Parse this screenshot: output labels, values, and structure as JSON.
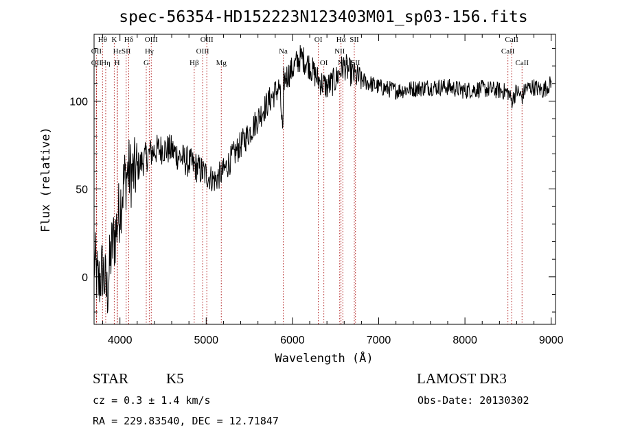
{
  "chart_data": {
    "type": "line",
    "title": "spec-56354-HD152223N123403M01_sp03-156.fits",
    "xlabel": "Wavelength (Å)",
    "ylabel": "Flux (relative)",
    "xlim": [
      3700,
      9050
    ],
    "ylim": [
      -27,
      138
    ],
    "x_ticks": [
      4000,
      5000,
      6000,
      7000,
      8000,
      9000
    ],
    "y_ticks": [
      0,
      50,
      100
    ],
    "series": [
      {
        "name": "flux",
        "x": [
          3700,
          3750,
          3800,
          3850,
          3900,
          3950,
          4000,
          4050,
          4100,
          4150,
          4200,
          4300,
          4400,
          4500,
          4600,
          4700,
          4800,
          4900,
          5000,
          5100,
          5200,
          5300,
          5400,
          5500,
          5600,
          5700,
          5800,
          5850,
          5890,
          5900,
          5950,
          6000,
          6050,
          6100,
          6200,
          6300,
          6400,
          6500,
          6563,
          6600,
          6700,
          6800,
          6900,
          7000,
          7200,
          7400,
          7600,
          7800,
          8000,
          8200,
          8400,
          8500,
          8542,
          8600,
          8662,
          8700,
          8800,
          8900,
          9000
        ],
        "values": [
          10,
          -5,
          5,
          -10,
          15,
          25,
          40,
          55,
          60,
          58,
          62,
          68,
          72,
          73,
          72,
          68,
          65,
          62,
          58,
          55,
          60,
          68,
          75,
          82,
          90,
          98,
          105,
          108,
          80,
          112,
          115,
          118,
          122,
          125,
          120,
          112,
          108,
          112,
          118,
          120,
          115,
          112,
          110,
          108,
          106,
          107,
          108,
          108,
          106,
          107,
          106,
          105,
          100,
          106,
          102,
          107,
          108,
          106,
          110
        ]
      }
    ],
    "lines": [
      {
        "label": "Hθ",
        "x": 3798,
        "row": 1
      },
      {
        "label": "OII",
        "x": 3727,
        "row": 2
      },
      {
        "label": "OII",
        "x": 3727,
        "row": 3
      },
      {
        "label": "K",
        "x": 3934,
        "row": 1
      },
      {
        "label": "Hε",
        "x": 3970,
        "row": 2
      },
      {
        "label": "Hη",
        "x": 3835,
        "row": 3
      },
      {
        "label": "H",
        "x": 3968,
        "row": 3
      },
      {
        "label": "Hδ",
        "x": 4102,
        "row": 1
      },
      {
        "label": "SII",
        "x": 4072,
        "row": 2
      },
      {
        "label": "OIII",
        "x": 4363,
        "row": 1
      },
      {
        "label": "Hγ",
        "x": 4340,
        "row": 2
      },
      {
        "label": "G",
        "x": 4305,
        "row": 3
      },
      {
        "label": "OIII",
        "x": 5007,
        "row": 1
      },
      {
        "label": "OIII",
        "x": 4959,
        "row": 2
      },
      {
        "label": "Hβ",
        "x": 4861,
        "row": 3
      },
      {
        "label": "Mg",
        "x": 5175,
        "row": 3
      },
      {
        "label": "Na",
        "x": 5893,
        "row": 2
      },
      {
        "label": "OI",
        "x": 6300,
        "row": 1
      },
      {
        "label": "OI",
        "x": 6364,
        "row": 3
      },
      {
        "label": "Hα",
        "x": 6563,
        "row": 1
      },
      {
        "label": "SII",
        "x": 6717,
        "row": 1
      },
      {
        "label": "NII",
        "x": 6548,
        "row": 2
      },
      {
        "label": "NII",
        "x": 6584,
        "row": 3
      },
      {
        "label": "SII",
        "x": 6731,
        "row": 3
      },
      {
        "label": "CaII",
        "x": 8542,
        "row": 1
      },
      {
        "label": "CaII",
        "x": 8498,
        "row": 2
      },
      {
        "label": "CaII",
        "x": 8662,
        "row": 3
      }
    ]
  },
  "info": {
    "object_class": "STAR",
    "subclass": "K5",
    "survey": "LAMOST DR3",
    "cz": "cz = 0.3 ± 1.4 km/s",
    "obs_date": "Obs-Date: 20130302",
    "coords": "RA = 229.83540, DEC =  12.71847"
  }
}
